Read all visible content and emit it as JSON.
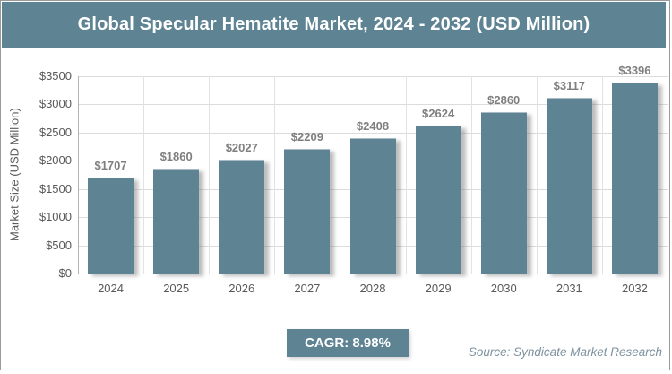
{
  "header": {
    "title": "Global Specular Hematite Market, 2024 - 2032 (USD Million)"
  },
  "chart_data": {
    "type": "bar",
    "title": "Global Specular Hematite Market, 2024 - 2032 (USD Million)",
    "categories": [
      "2024",
      "2025",
      "2026",
      "2027",
      "2028",
      "2029",
      "2030",
      "2031",
      "2032"
    ],
    "values": [
      1707,
      1860,
      2027,
      2209,
      2408,
      2624,
      2860,
      3117,
      3396
    ],
    "bar_labels": [
      "$1707",
      "$1860",
      "$2027",
      "$2209",
      "$2408",
      "$2624",
      "$2860",
      "$3117",
      "$3396"
    ],
    "xlabel": "",
    "ylabel": "Market Size (USD Million)",
    "ylim": [
      0,
      3500
    ],
    "ytick_step": 500,
    "ytick_labels": [
      "$0",
      "$500",
      "$1000",
      "$1500",
      "$2000",
      "$2500",
      "$3000",
      "$3500"
    ],
    "grid": true,
    "legend": "none",
    "bar_color": "#5e8494"
  },
  "footer": {
    "cagr_label": "CAGR: 8.98%",
    "source": "Source: Syndicate Market Research"
  },
  "colors": {
    "accent": "#5e8494",
    "header_text": "#ffffff",
    "grid_line": "#dcdcdc",
    "axis_line": "#b3b3b3",
    "tick_text": "#595959",
    "value_label_text": "#7f7f7f",
    "source_text": "#7e93a0",
    "canvas_border": "#9a9a9a"
  }
}
